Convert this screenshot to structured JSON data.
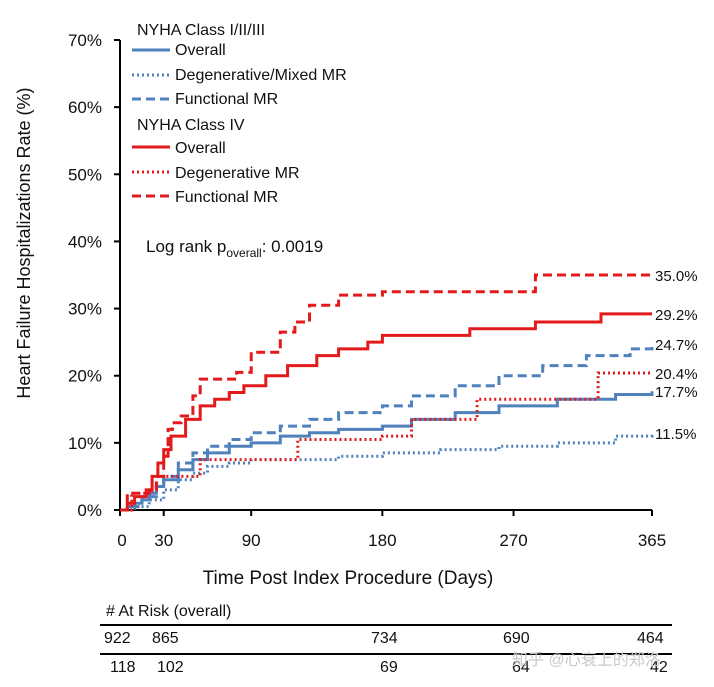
{
  "chart_data": {
    "type": "line",
    "step": true,
    "xlabel": "Time Post Index Procedure (Days)",
    "ylabel": "Heart Failure Hospitalizations Rate (%)",
    "xlim": [
      0,
      365
    ],
    "ylim": [
      0,
      70
    ],
    "xticks": [
      0,
      30,
      90,
      180,
      270,
      365
    ],
    "yticks": [
      0,
      10,
      20,
      30,
      40,
      50,
      60,
      70
    ],
    "ytick_labels": [
      "0%",
      "10%",
      "20%",
      "30%",
      "40%",
      "50%",
      "60%",
      "70%"
    ],
    "legend_groups": [
      "NYHA Class I/II/III",
      "NYHA Class IV"
    ],
    "stat_annotation": {
      "prefix": "Log rank p",
      "subscript": "overall",
      "suffix": ": 0.0019"
    },
    "series": [
      {
        "name": "Overall",
        "group": "NYHA Class I/II/III",
        "style": "solid",
        "color": "#4f81bd",
        "end_label": "17.7%",
        "points": [
          [
            0,
            0
          ],
          [
            5,
            0.5
          ],
          [
            10,
            1
          ],
          [
            15,
            1.5
          ],
          [
            20,
            2.5
          ],
          [
            25,
            3.5
          ],
          [
            30,
            4.5
          ],
          [
            40,
            6
          ],
          [
            50,
            7.5
          ],
          [
            60,
            8.5
          ],
          [
            75,
            9.5
          ],
          [
            90,
            10
          ],
          [
            110,
            11
          ],
          [
            130,
            11.5
          ],
          [
            150,
            12
          ],
          [
            180,
            12.5
          ],
          [
            200,
            13.5
          ],
          [
            230,
            14.5
          ],
          [
            260,
            15.5
          ],
          [
            300,
            16.5
          ],
          [
            340,
            17.2
          ],
          [
            365,
            17.7
          ]
        ]
      },
      {
        "name": "Degenerative/Mixed MR",
        "group": "NYHA Class I/II/III",
        "style": "dotted",
        "color": "#4f81bd",
        "end_label": "11.5%",
        "points": [
          [
            0,
            0
          ],
          [
            10,
            0.5
          ],
          [
            20,
            1.5
          ],
          [
            30,
            3
          ],
          [
            40,
            4.5
          ],
          [
            50,
            5.5
          ],
          [
            60,
            6.5
          ],
          [
            75,
            7
          ],
          [
            90,
            7.5
          ],
          [
            120,
            7.5
          ],
          [
            150,
            8
          ],
          [
            180,
            8.5
          ],
          [
            220,
            9
          ],
          [
            260,
            9.5
          ],
          [
            300,
            10
          ],
          [
            340,
            11
          ],
          [
            365,
            11.5
          ]
        ]
      },
      {
        "name": "Functional MR",
        "group": "NYHA Class I/II/III",
        "style": "dashed",
        "color": "#4f81bd",
        "end_label": "24.7%",
        "points": [
          [
            0,
            0
          ],
          [
            5,
            0.5
          ],
          [
            15,
            2
          ],
          [
            25,
            4
          ],
          [
            30,
            5
          ],
          [
            40,
            7
          ],
          [
            50,
            8.5
          ],
          [
            60,
            9.5
          ],
          [
            75,
            10.5
          ],
          [
            90,
            11.5
          ],
          [
            110,
            12.5
          ],
          [
            130,
            13.5
          ],
          [
            150,
            14.5
          ],
          [
            180,
            15.5
          ],
          [
            200,
            17
          ],
          [
            230,
            18.5
          ],
          [
            260,
            20
          ],
          [
            290,
            21.5
          ],
          [
            320,
            23
          ],
          [
            350,
            24
          ],
          [
            365,
            24.7
          ]
        ]
      },
      {
        "name": "Overall",
        "group": "NYHA Class IV",
        "style": "solid",
        "color": "#e31a1c",
        "end_label": "29.2%",
        "points": [
          [
            0,
            0
          ],
          [
            5,
            1
          ],
          [
            10,
            2
          ],
          [
            18,
            3
          ],
          [
            22,
            5
          ],
          [
            26,
            7
          ],
          [
            30,
            9
          ],
          [
            35,
            11
          ],
          [
            45,
            13.5
          ],
          [
            55,
            15.5
          ],
          [
            65,
            16.5
          ],
          [
            75,
            17.5
          ],
          [
            85,
            18.5
          ],
          [
            100,
            20
          ],
          [
            115,
            21.5
          ],
          [
            135,
            23
          ],
          [
            150,
            24
          ],
          [
            170,
            25
          ],
          [
            180,
            26
          ],
          [
            240,
            27
          ],
          [
            285,
            28
          ],
          [
            330,
            29.2
          ],
          [
            365,
            29.2
          ]
        ]
      },
      {
        "name": "Degenerative MR",
        "group": "NYHA Class IV",
        "style": "dotted",
        "color": "#e31a1c",
        "end_label": "20.4%",
        "points": [
          [
            0,
            0
          ],
          [
            8,
            2.5
          ],
          [
            22,
            5
          ],
          [
            55,
            7.5
          ],
          [
            120,
            7.5
          ],
          [
            122,
            10.5
          ],
          [
            180,
            11
          ],
          [
            200,
            13.5
          ],
          [
            245,
            16.5
          ],
          [
            325,
            16.5
          ],
          [
            328,
            20.4
          ],
          [
            365,
            20.4
          ]
        ]
      },
      {
        "name": "Functional MR",
        "group": "NYHA Class IV",
        "style": "dashed",
        "color": "#e31a1c",
        "end_label": "35.0%",
        "points": [
          [
            0,
            0
          ],
          [
            5,
            2.5
          ],
          [
            20,
            3
          ],
          [
            25,
            5
          ],
          [
            30,
            8
          ],
          [
            33,
            12
          ],
          [
            36,
            13
          ],
          [
            42,
            14
          ],
          [
            50,
            17
          ],
          [
            55,
            19.5
          ],
          [
            70,
            19.5
          ],
          [
            80,
            20.5
          ],
          [
            90,
            23.5
          ],
          [
            105,
            23.5
          ],
          [
            110,
            26.5
          ],
          [
            120,
            28
          ],
          [
            130,
            30.5
          ],
          [
            150,
            32
          ],
          [
            170,
            32
          ],
          [
            180,
            32.5
          ],
          [
            230,
            32.5
          ],
          [
            285,
            35
          ],
          [
            365,
            35
          ]
        ]
      }
    ]
  },
  "at_risk": {
    "title": "# At Risk (overall)",
    "rows": [
      {
        "values": [
          "922",
          "865",
          "734",
          "690",
          "464"
        ]
      },
      {
        "values": [
          "118",
          "102",
          "69",
          "64",
          "42"
        ]
      }
    ]
  },
  "watermark": "知乎 @心衰上的郑洛"
}
